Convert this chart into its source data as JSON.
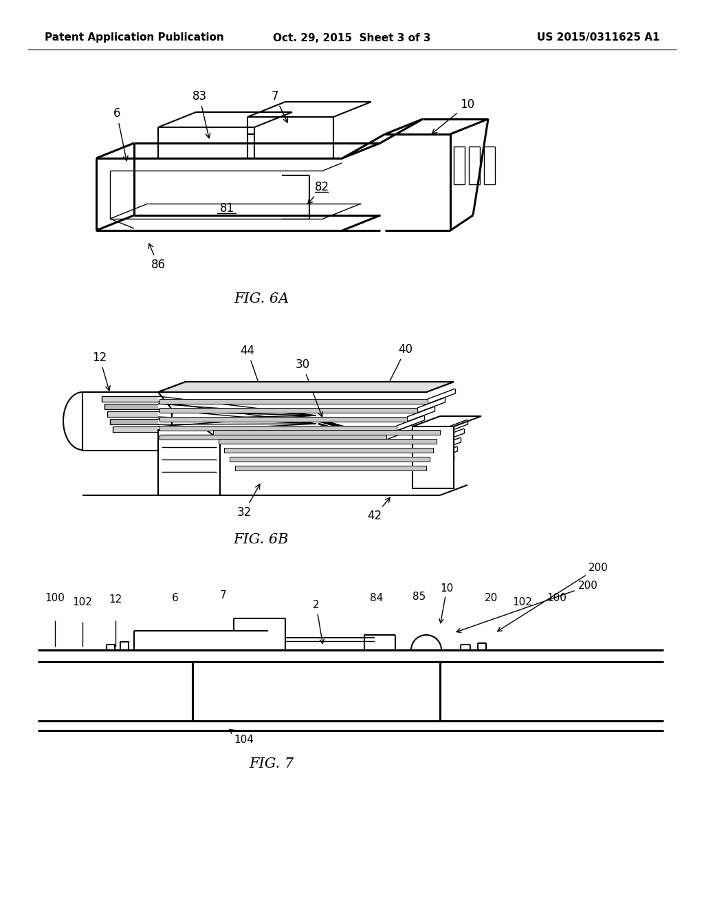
{
  "background_color": "#ffffff",
  "header_left": "Patent Application Publication",
  "header_center": "Oct. 29, 2015  Sheet 3 of 3",
  "header_right": "US 2015/0311625 A1",
  "header_fontsize": 11,
  "fig6a_caption": "FIG. 6A",
  "fig6b_caption": "FIG. 6B",
  "fig7_caption": "FIG. 7",
  "caption_fontsize": 15,
  "label_fontsize": 12,
  "line_color": "#000000"
}
